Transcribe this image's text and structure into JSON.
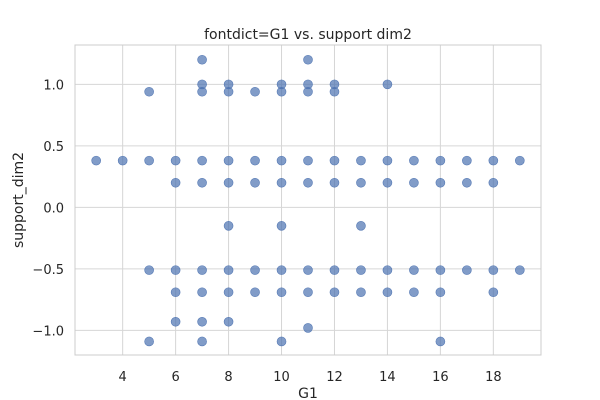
{
  "chart_data": {
    "type": "scatter",
    "title": "fontdict=G1 vs. support dim2",
    "xlabel": "G1",
    "ylabel": "support_dim2",
    "xlim": [
      2.2,
      19.8
    ],
    "ylim": [
      -1.2,
      1.32
    ],
    "xticks": [
      4,
      6,
      8,
      10,
      12,
      14,
      16,
      18
    ],
    "yticks": [
      1.0,
      0.5,
      0.0,
      -0.5,
      -1.0
    ],
    "ytick_labels": [
      "1.0",
      "0.5",
      "0.0",
      "−0.5",
      "−1.0"
    ],
    "grid": true,
    "legend": "none",
    "marker_color": "#4c72b0",
    "marker_alpha": 0.7,
    "points": [
      [
        7,
        1.2
      ],
      [
        11,
        1.2
      ],
      [
        7,
        1.0
      ],
      [
        8,
        1.0
      ],
      [
        10,
        1.0
      ],
      [
        11,
        1.0
      ],
      [
        12,
        1.0
      ],
      [
        14,
        1.0
      ],
      [
        7,
        0.94
      ],
      [
        8,
        0.94
      ],
      [
        9,
        0.94
      ],
      [
        10,
        0.94
      ],
      [
        11,
        0.94
      ],
      [
        12,
        0.94
      ],
      [
        5,
        0.94
      ],
      [
        3,
        0.38
      ],
      [
        4,
        0.38
      ],
      [
        5,
        0.38
      ],
      [
        6,
        0.38
      ],
      [
        7,
        0.38
      ],
      [
        8,
        0.38
      ],
      [
        9,
        0.38
      ],
      [
        10,
        0.38
      ],
      [
        11,
        0.38
      ],
      [
        12,
        0.38
      ],
      [
        13,
        0.38
      ],
      [
        14,
        0.38
      ],
      [
        15,
        0.38
      ],
      [
        16,
        0.38
      ],
      [
        17,
        0.38
      ],
      [
        18,
        0.38
      ],
      [
        19,
        0.38
      ],
      [
        6,
        0.2
      ],
      [
        7,
        0.2
      ],
      [
        8,
        0.2
      ],
      [
        9,
        0.2
      ],
      [
        10,
        0.2
      ],
      [
        11,
        0.2
      ],
      [
        12,
        0.2
      ],
      [
        13,
        0.2
      ],
      [
        14,
        0.2
      ],
      [
        15,
        0.2
      ],
      [
        16,
        0.2
      ],
      [
        17,
        0.2
      ],
      [
        18,
        0.2
      ],
      [
        8,
        -0.15
      ],
      [
        10,
        -0.15
      ],
      [
        13,
        -0.15
      ],
      [
        5,
        -0.51
      ],
      [
        6,
        -0.51
      ],
      [
        7,
        -0.51
      ],
      [
        8,
        -0.51
      ],
      [
        9,
        -0.51
      ],
      [
        10,
        -0.51
      ],
      [
        11,
        -0.51
      ],
      [
        12,
        -0.51
      ],
      [
        13,
        -0.51
      ],
      [
        14,
        -0.51
      ],
      [
        15,
        -0.51
      ],
      [
        16,
        -0.51
      ],
      [
        17,
        -0.51
      ],
      [
        18,
        -0.51
      ],
      [
        19,
        -0.51
      ],
      [
        6,
        -0.69
      ],
      [
        7,
        -0.69
      ],
      [
        8,
        -0.69
      ],
      [
        9,
        -0.69
      ],
      [
        10,
        -0.69
      ],
      [
        11,
        -0.69
      ],
      [
        12,
        -0.69
      ],
      [
        13,
        -0.69
      ],
      [
        14,
        -0.69
      ],
      [
        15,
        -0.69
      ],
      [
        16,
        -0.69
      ],
      [
        18,
        -0.69
      ],
      [
        6,
        -0.93
      ],
      [
        7,
        -0.93
      ],
      [
        8,
        -0.93
      ],
      [
        11,
        -0.98
      ],
      [
        5,
        -1.09
      ],
      [
        7,
        -1.09
      ],
      [
        10,
        -1.09
      ],
      [
        16,
        -1.09
      ]
    ]
  }
}
